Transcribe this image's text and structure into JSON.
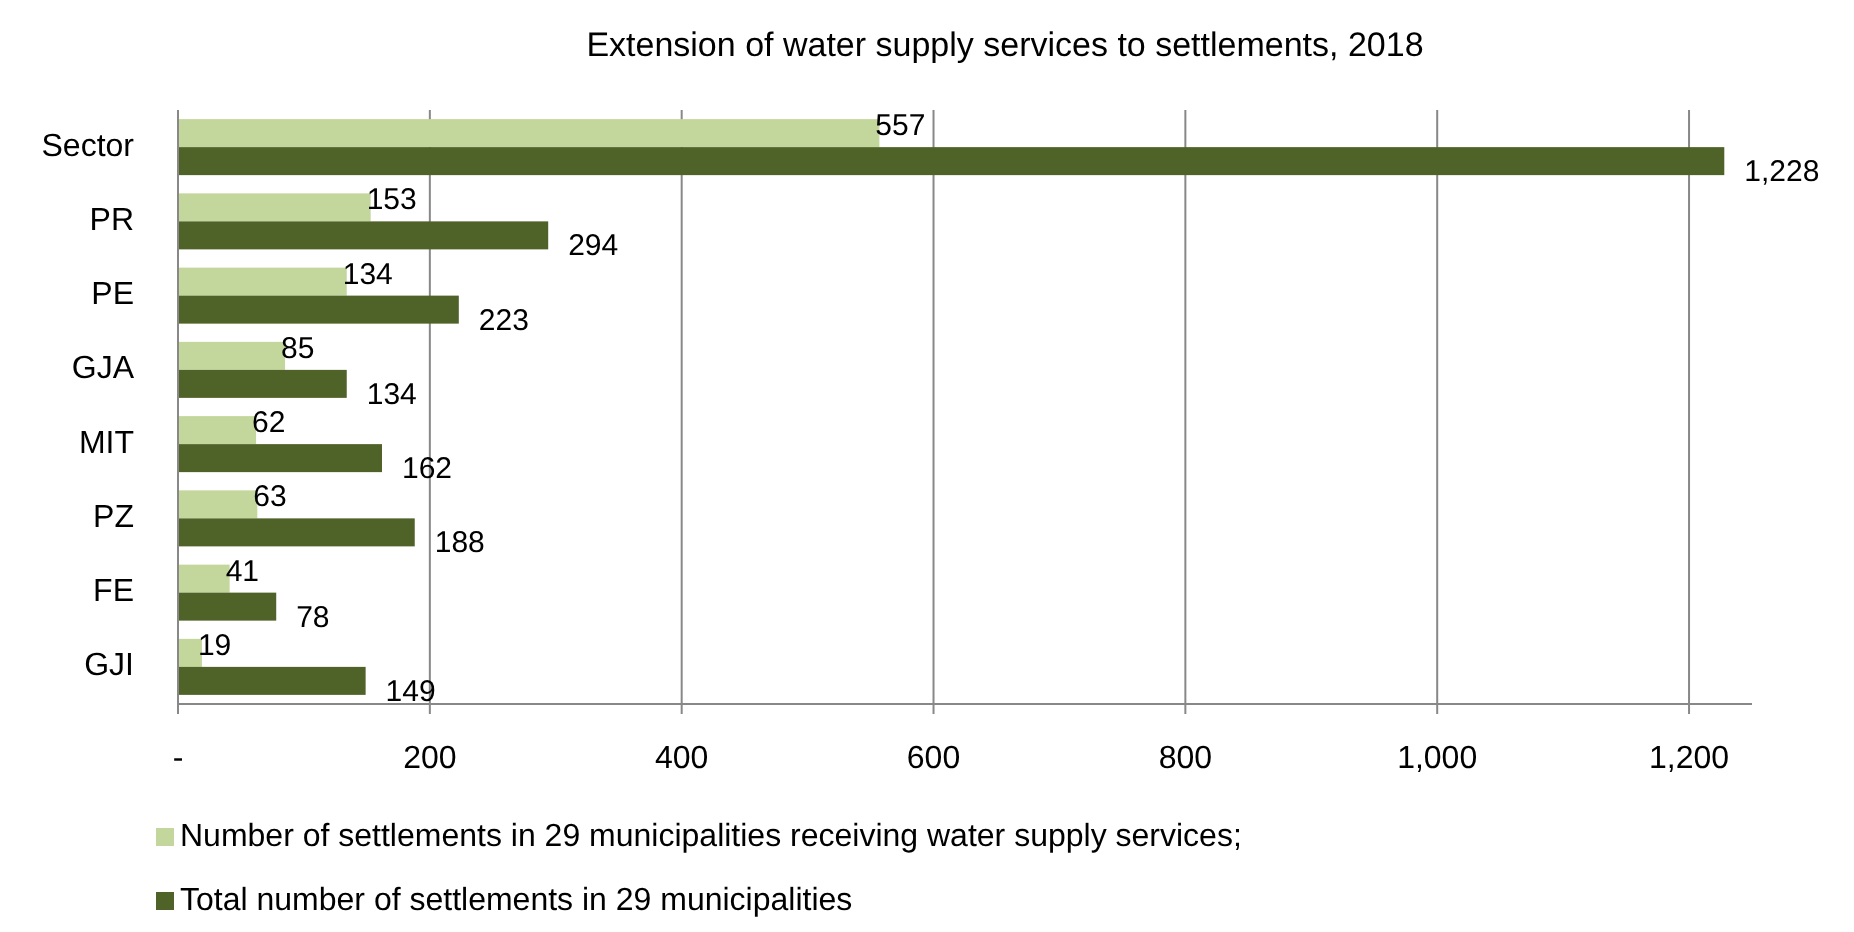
{
  "chart_data": {
    "type": "bar",
    "orientation": "horizontal",
    "title": "Extension of water supply services to settlements, 2018",
    "categories": [
      "Sector",
      "PR",
      "PE",
      "GJA",
      "MIT",
      "PZ",
      "FE",
      "GJI"
    ],
    "series": [
      {
        "name": "Number of settlements in 29 municipalities receiving water supply services;",
        "color": "#c3d69b",
        "values": [
          557,
          153,
          134,
          85,
          62,
          63,
          41,
          19
        ],
        "value_labels": [
          "557",
          "153",
          "134",
          "85",
          "62",
          "63",
          "41",
          "19"
        ]
      },
      {
        "name": "Total number of settlements in 29 municipalities",
        "color": "#4f6228",
        "values": [
          1228,
          294,
          223,
          134,
          162,
          188,
          78,
          149
        ],
        "value_labels": [
          "1,228",
          "294",
          "223",
          "134",
          "162",
          "188",
          "78",
          "149"
        ]
      }
    ],
    "xlim": [
      0,
      1250
    ],
    "xticks": [
      {
        "value": 0,
        "label": "-"
      },
      200,
      400,
      600,
      800,
      {
        "value": 1000,
        "label": "1,000"
      },
      {
        "value": 1200,
        "label": "1,200"
      }
    ],
    "grid": "x",
    "legend": "bottom"
  }
}
